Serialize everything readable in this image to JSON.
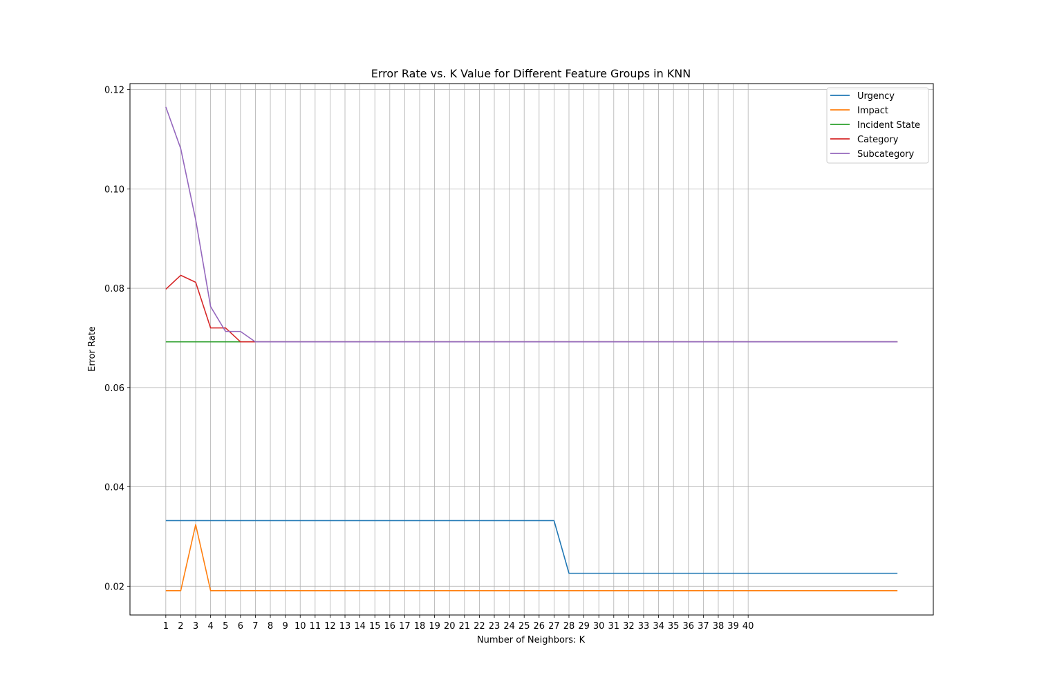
{
  "chart_data": {
    "type": "line",
    "title": "Error Rate vs. K Value for Different Feature Groups in KNN",
    "xlabel": "Number of Neighbors: K",
    "ylabel": "Error Rate",
    "xlim": [
      -1.4,
      52.4
    ],
    "ylim": [
      0.0142,
      0.1212
    ],
    "x_ticks": [
      1,
      2,
      3,
      4,
      5,
      6,
      7,
      8,
      9,
      10,
      11,
      12,
      13,
      14,
      15,
      16,
      17,
      18,
      19,
      20,
      21,
      22,
      23,
      24,
      25,
      26,
      27,
      28,
      29,
      30,
      31,
      32,
      33,
      34,
      35,
      36,
      37,
      38,
      39,
      40
    ],
    "y_ticks": [
      0.02,
      0.04,
      0.06,
      0.08,
      0.1,
      0.12
    ],
    "y_tick_labels": [
      "0.02",
      "0.04",
      "0.06",
      "0.08",
      "0.10",
      "0.12"
    ],
    "grid": true,
    "legend_position": "top-right",
    "x": [
      1,
      2,
      3,
      4,
      5,
      6,
      7,
      8,
      9,
      10,
      11,
      12,
      13,
      14,
      15,
      16,
      17,
      18,
      19,
      20,
      21,
      22,
      23,
      24,
      25,
      26,
      27,
      28,
      29,
      30,
      31,
      32,
      33,
      34,
      35,
      36,
      37,
      38,
      39,
      40,
      41,
      42,
      43,
      44,
      45,
      46,
      47,
      48,
      49,
      50
    ],
    "series": [
      {
        "name": "Urgency",
        "color": "#1f77b4",
        "values": [
          0.0332,
          0.0332,
          0.0332,
          0.0332,
          0.0332,
          0.0332,
          0.0332,
          0.0332,
          0.0332,
          0.0332,
          0.0332,
          0.0332,
          0.0332,
          0.0332,
          0.0332,
          0.0332,
          0.0332,
          0.0332,
          0.0332,
          0.0332,
          0.0332,
          0.0332,
          0.0332,
          0.0332,
          0.0332,
          0.0332,
          0.0332,
          0.0226,
          0.0226,
          0.0226,
          0.0226,
          0.0226,
          0.0226,
          0.0226,
          0.0226,
          0.0226,
          0.0226,
          0.0226,
          0.0226,
          0.0226,
          0.0226,
          0.0226,
          0.0226,
          0.0226,
          0.0226,
          0.0226,
          0.0226,
          0.0226,
          0.0226,
          0.0226
        ]
      },
      {
        "name": "Impact",
        "color": "#ff7f0e",
        "values": [
          0.0191,
          0.0191,
          0.0324,
          0.0191,
          0.0191,
          0.0191,
          0.0191,
          0.0191,
          0.0191,
          0.0191,
          0.0191,
          0.0191,
          0.0191,
          0.0191,
          0.0191,
          0.0191,
          0.0191,
          0.0191,
          0.0191,
          0.0191,
          0.0191,
          0.0191,
          0.0191,
          0.0191,
          0.0191,
          0.0191,
          0.0191,
          0.0191,
          0.0191,
          0.0191,
          0.0191,
          0.0191,
          0.0191,
          0.0191,
          0.0191,
          0.0191,
          0.0191,
          0.0191,
          0.0191,
          0.0191,
          0.0191,
          0.0191,
          0.0191,
          0.0191,
          0.0191,
          0.0191,
          0.0191,
          0.0191,
          0.0191,
          0.0191
        ]
      },
      {
        "name": "Incident State",
        "color": "#2ca02c",
        "values": [
          0.0692,
          0.0692,
          0.0692,
          0.0692,
          0.0692,
          0.0692,
          0.0692,
          0.0692,
          0.0692,
          0.0692,
          0.0692,
          0.0692,
          0.0692,
          0.0692,
          0.0692,
          0.0692,
          0.0692,
          0.0692,
          0.0692,
          0.0692,
          0.0692,
          0.0692,
          0.0692,
          0.0692,
          0.0692,
          0.0692,
          0.0692,
          0.0692,
          0.0692,
          0.0692,
          0.0692,
          0.0692,
          0.0692,
          0.0692,
          0.0692,
          0.0692,
          0.0692,
          0.0692,
          0.0692,
          0.0692,
          0.0692,
          0.0692,
          0.0692,
          0.0692,
          0.0692,
          0.0692,
          0.0692,
          0.0692,
          0.0692,
          0.0692
        ]
      },
      {
        "name": "Category",
        "color": "#d62728",
        "values": [
          0.0798,
          0.0826,
          0.0812,
          0.072,
          0.072,
          0.0692,
          0.0692,
          0.0692,
          0.0692,
          0.0692,
          0.0692,
          0.0692,
          0.0692,
          0.0692,
          0.0692,
          0.0692,
          0.0692,
          0.0692,
          0.0692,
          0.0692,
          0.0692,
          0.0692,
          0.0692,
          0.0692,
          0.0692,
          0.0692,
          0.0692,
          0.0692,
          0.0692,
          0.0692,
          0.0692,
          0.0692,
          0.0692,
          0.0692,
          0.0692,
          0.0692,
          0.0692,
          0.0692,
          0.0692,
          0.0692,
          0.0692,
          0.0692,
          0.0692,
          0.0692,
          0.0692,
          0.0692,
          0.0692,
          0.0692,
          0.0692,
          0.0692
        ]
      },
      {
        "name": "Subcategory",
        "color": "#9467bd",
        "values": [
          0.1165,
          0.1081,
          0.0938,
          0.0763,
          0.0713,
          0.0713,
          0.0692,
          0.0692,
          0.0692,
          0.0692,
          0.0692,
          0.0692,
          0.0692,
          0.0692,
          0.0692,
          0.0692,
          0.0692,
          0.0692,
          0.0692,
          0.0692,
          0.0692,
          0.0692,
          0.0692,
          0.0692,
          0.0692,
          0.0692,
          0.0692,
          0.0692,
          0.0692,
          0.0692,
          0.0692,
          0.0692,
          0.0692,
          0.0692,
          0.0692,
          0.0692,
          0.0692,
          0.0692,
          0.0692,
          0.0692,
          0.0692,
          0.0692,
          0.0692,
          0.0692,
          0.0692,
          0.0692,
          0.0692,
          0.0692,
          0.0692,
          0.0692
        ]
      }
    ]
  }
}
